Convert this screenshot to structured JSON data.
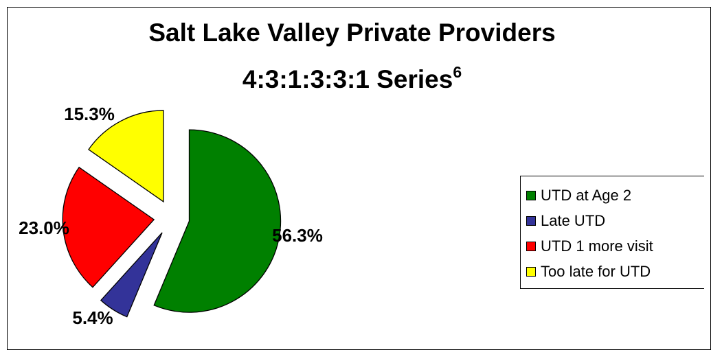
{
  "chart_data": {
    "type": "pie",
    "title": "Salt Lake Valley Private Providers",
    "subtitle": "4:3:1:3:3:1 Series",
    "subtitle_superscript": "6",
    "exploded": true,
    "legend_position": "right",
    "slices": [
      {
        "label": "UTD at Age 2",
        "value": 56.3,
        "display": "56.3%",
        "color": "#008000"
      },
      {
        "label": "Late UTD",
        "value": 5.4,
        "display": "5.4%",
        "color": "#333399"
      },
      {
        "label": "UTD 1 more visit",
        "value": 23.0,
        "display": "23.0%",
        "color": "#FF0000"
      },
      {
        "label": "Too late for UTD",
        "value": 15.3,
        "display": "15.3%",
        "color": "#FFFF00"
      }
    ]
  }
}
